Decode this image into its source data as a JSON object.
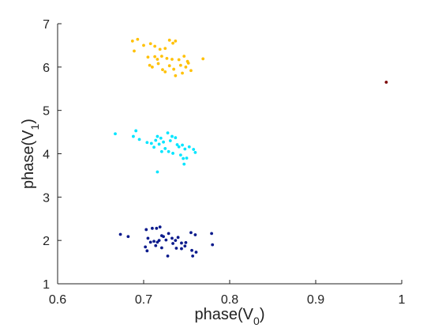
{
  "chart_data": {
    "type": "scatter",
    "title": "",
    "xlabel": "phase(V",
    "xlabel_sub": "0",
    "xlabel_close": ")",
    "ylabel": "phase(V",
    "ylabel_sub": "1",
    "ylabel_close": ")",
    "xlim": [
      0.6,
      1.0
    ],
    "ylim": [
      1,
      7
    ],
    "xticks": [
      0.6,
      0.7,
      0.8,
      0.9,
      1.0
    ],
    "xtick_labels": [
      "0.6",
      "0.7",
      "0.8",
      "0.9",
      "1"
    ],
    "yticks": [
      1,
      2,
      3,
      4,
      5,
      6,
      7
    ],
    "ytick_labels": [
      "1",
      "2",
      "3",
      "4",
      "5",
      "6",
      "7"
    ],
    "grid": false,
    "series": [
      {
        "color": "#ffc107",
        "points": [
          [
            0.687,
            6.6
          ],
          [
            0.693,
            6.64
          ],
          [
            0.7,
            6.5
          ],
          [
            0.708,
            6.54
          ],
          [
            0.713,
            6.48
          ],
          [
            0.719,
            6.41
          ],
          [
            0.725,
            6.43
          ],
          [
            0.73,
            6.62
          ],
          [
            0.734,
            6.55
          ],
          [
            0.737,
            6.6
          ],
          [
            0.689,
            6.37
          ],
          [
            0.705,
            6.23
          ],
          [
            0.713,
            6.24
          ],
          [
            0.716,
            6.18
          ],
          [
            0.721,
            6.25
          ],
          [
            0.727,
            6.2
          ],
          [
            0.733,
            6.18
          ],
          [
            0.741,
            6.17
          ],
          [
            0.747,
            6.25
          ],
          [
            0.751,
            6.13
          ],
          [
            0.769,
            6.19
          ],
          [
            0.707,
            6.04
          ],
          [
            0.717,
            6.08
          ],
          [
            0.722,
            5.94
          ],
          [
            0.725,
            5.89
          ],
          [
            0.73,
            6.03
          ],
          [
            0.735,
            5.95
          ],
          [
            0.737,
            5.8
          ],
          [
            0.743,
            6.04
          ],
          [
            0.749,
            6.0
          ],
          [
            0.752,
            6.09
          ],
          [
            0.755,
            5.92
          ],
          [
            0.71,
            6.0
          ],
          [
            0.745,
            5.86
          ]
        ]
      },
      {
        "color": "#00e5ff",
        "points": [
          [
            0.667,
            4.46
          ],
          [
            0.691,
            4.53
          ],
          [
            0.688,
            4.4
          ],
          [
            0.695,
            4.33
          ],
          [
            0.704,
            4.26
          ],
          [
            0.709,
            4.24
          ],
          [
            0.714,
            4.31
          ],
          [
            0.716,
            4.4
          ],
          [
            0.718,
            4.22
          ],
          [
            0.72,
            4.36
          ],
          [
            0.723,
            4.27
          ],
          [
            0.728,
            4.48
          ],
          [
            0.731,
            4.3
          ],
          [
            0.733,
            4.4
          ],
          [
            0.737,
            4.37
          ],
          [
            0.739,
            4.21
          ],
          [
            0.741,
            4.16
          ],
          [
            0.745,
            4.2
          ],
          [
            0.748,
            4.11
          ],
          [
            0.753,
            4.16
          ],
          [
            0.758,
            4.1
          ],
          [
            0.76,
            4.03
          ],
          [
            0.725,
            4.12
          ],
          [
            0.721,
            4.05
          ],
          [
            0.734,
            4.01
          ],
          [
            0.743,
            3.97
          ],
          [
            0.746,
            3.89
          ],
          [
            0.75,
            3.9
          ],
          [
            0.747,
            3.76
          ],
          [
            0.716,
            3.58
          ],
          [
            0.729,
            4.05
          ],
          [
            0.712,
            4.15
          ]
        ]
      },
      {
        "color": "#0a1a8c",
        "points": [
          [
            0.673,
            2.14
          ],
          [
            0.682,
            2.09
          ],
          [
            0.703,
            2.25
          ],
          [
            0.71,
            2.28
          ],
          [
            0.715,
            2.28
          ],
          [
            0.719,
            2.31
          ],
          [
            0.705,
            2.05
          ],
          [
            0.708,
            1.96
          ],
          [
            0.712,
            1.98
          ],
          [
            0.718,
            2.0
          ],
          [
            0.721,
            2.11
          ],
          [
            0.723,
            2.09
          ],
          [
            0.726,
            2.01
          ],
          [
            0.729,
            2.16
          ],
          [
            0.733,
            2.05
          ],
          [
            0.737,
            2.0
          ],
          [
            0.74,
            2.07
          ],
          [
            0.744,
            1.94
          ],
          [
            0.749,
            1.95
          ],
          [
            0.755,
            2.18
          ],
          [
            0.76,
            2.13
          ],
          [
            0.779,
            2.16
          ],
          [
            0.702,
            1.85
          ],
          [
            0.704,
            1.76
          ],
          [
            0.714,
            1.88
          ],
          [
            0.721,
            1.83
          ],
          [
            0.728,
            1.64
          ],
          [
            0.738,
            1.82
          ],
          [
            0.744,
            1.81
          ],
          [
            0.748,
            1.87
          ],
          [
            0.756,
            1.77
          ],
          [
            0.761,
            1.73
          ],
          [
            0.757,
            1.64
          ],
          [
            0.78,
            1.9
          ],
          [
            0.716,
            1.96
          ],
          [
            0.734,
            1.93
          ]
        ]
      },
      {
        "color": "#7a0000",
        "points": [
          [
            0.982,
            5.65
          ]
        ]
      }
    ]
  }
}
